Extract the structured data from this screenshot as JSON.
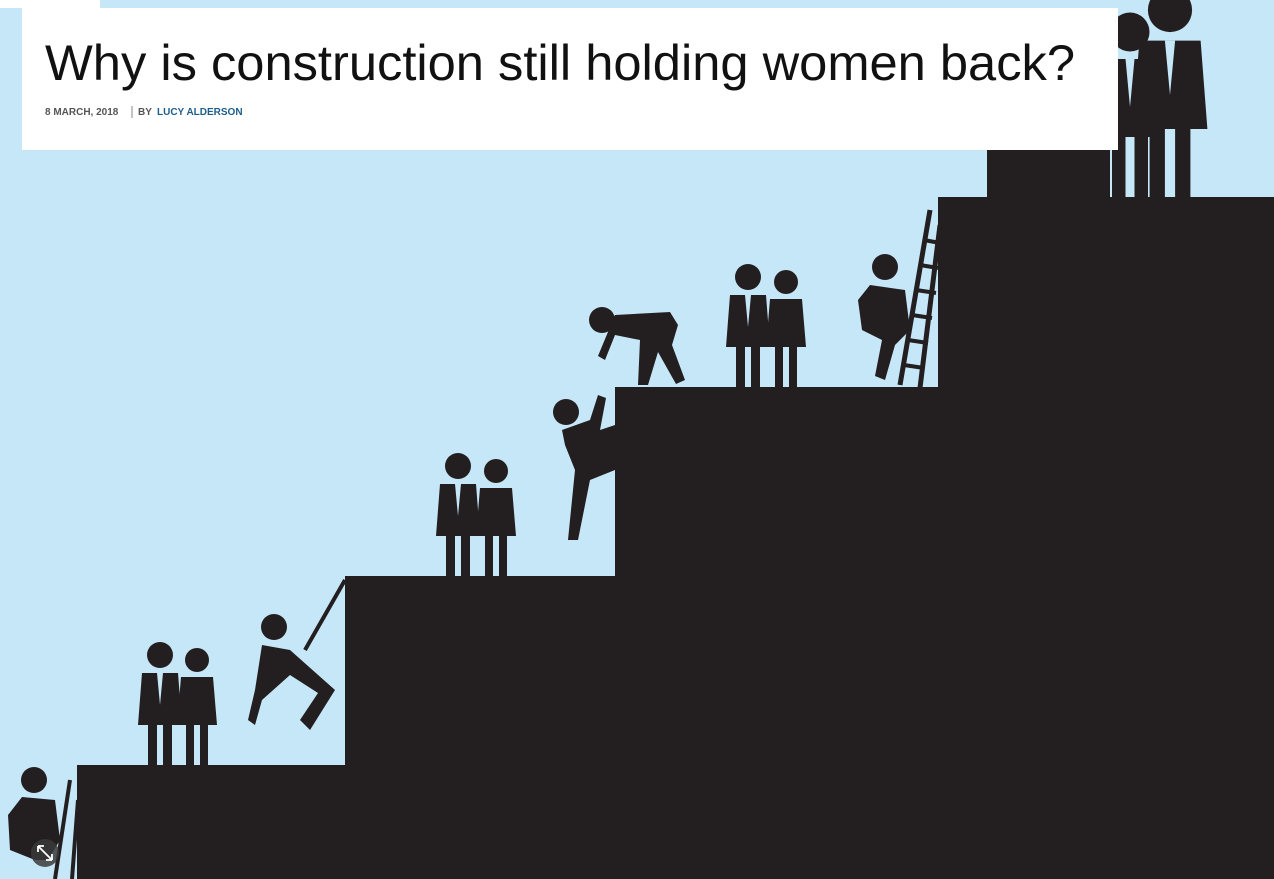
{
  "article": {
    "title": "Why is construction still holding women back?",
    "date": "8 MARCH, 2018",
    "byline_prefix": "BY",
    "author": "LUCY ALDERSON"
  }
}
